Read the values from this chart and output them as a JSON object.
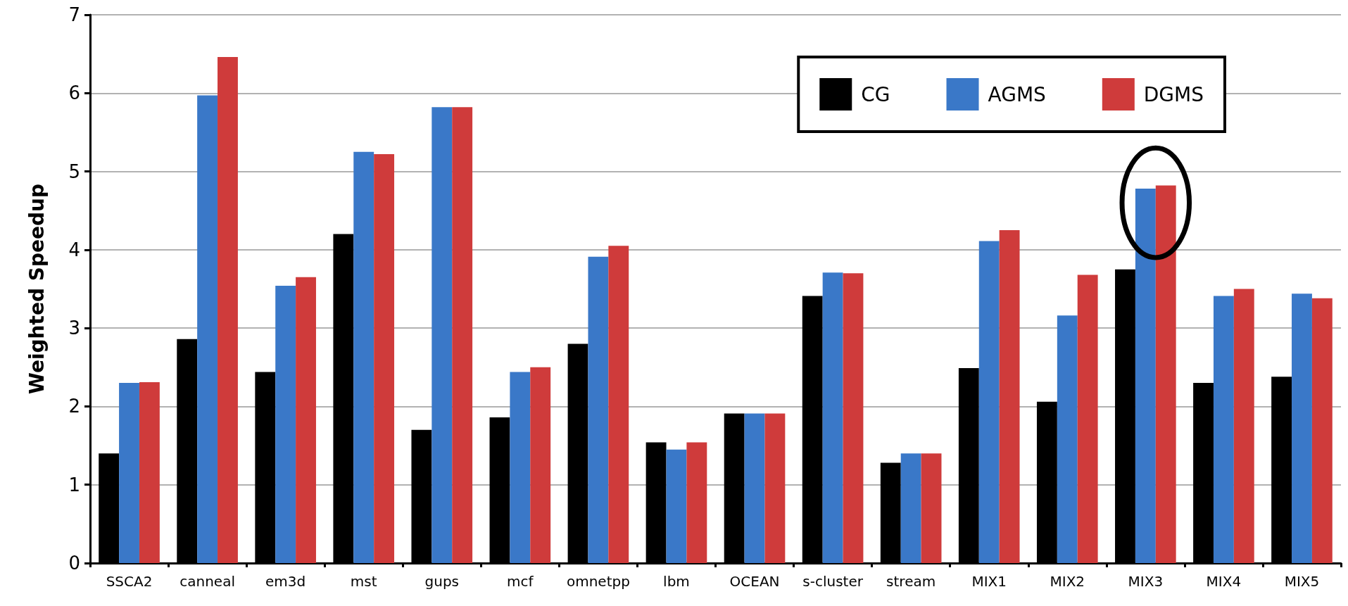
{
  "chart_data": {
    "type": "bar",
    "ylabel": "Weighted Speedup",
    "categories": [
      "SSCA2",
      "canneal",
      "em3d",
      "mst",
      "gups",
      "mcf",
      "omnetpp",
      "lbm",
      "OCEAN",
      "s-cluster",
      "stream",
      "MIX1",
      "MIX2",
      "MIX3",
      "MIX4",
      "MIX5"
    ],
    "series": [
      {
        "name": "CG",
        "color": "#000000",
        "values": [
          1.4,
          2.86,
          2.44,
          4.2,
          1.7,
          1.86,
          2.8,
          1.54,
          1.91,
          3.41,
          1.28,
          2.49,
          2.06,
          3.75,
          2.3,
          2.38
        ]
      },
      {
        "name": "AGMS",
        "color": "#3a78c8",
        "values": [
          2.3,
          5.97,
          3.54,
          5.25,
          5.82,
          2.44,
          3.91,
          1.45,
          1.91,
          3.71,
          1.4,
          4.11,
          3.16,
          4.78,
          3.41,
          3.44
        ]
      },
      {
        "name": "DGMS",
        "color": "#cf3b3b",
        "values": [
          2.31,
          6.46,
          3.65,
          5.22,
          5.82,
          2.5,
          4.05,
          1.54,
          1.91,
          3.7,
          1.4,
          4.25,
          3.68,
          4.82,
          3.5,
          3.38
        ]
      }
    ],
    "ylim": [
      0,
      7
    ],
    "yticks": [
      0,
      1,
      2,
      3,
      4,
      5,
      6,
      7
    ],
    "grid": "y",
    "legend": "top right"
  }
}
